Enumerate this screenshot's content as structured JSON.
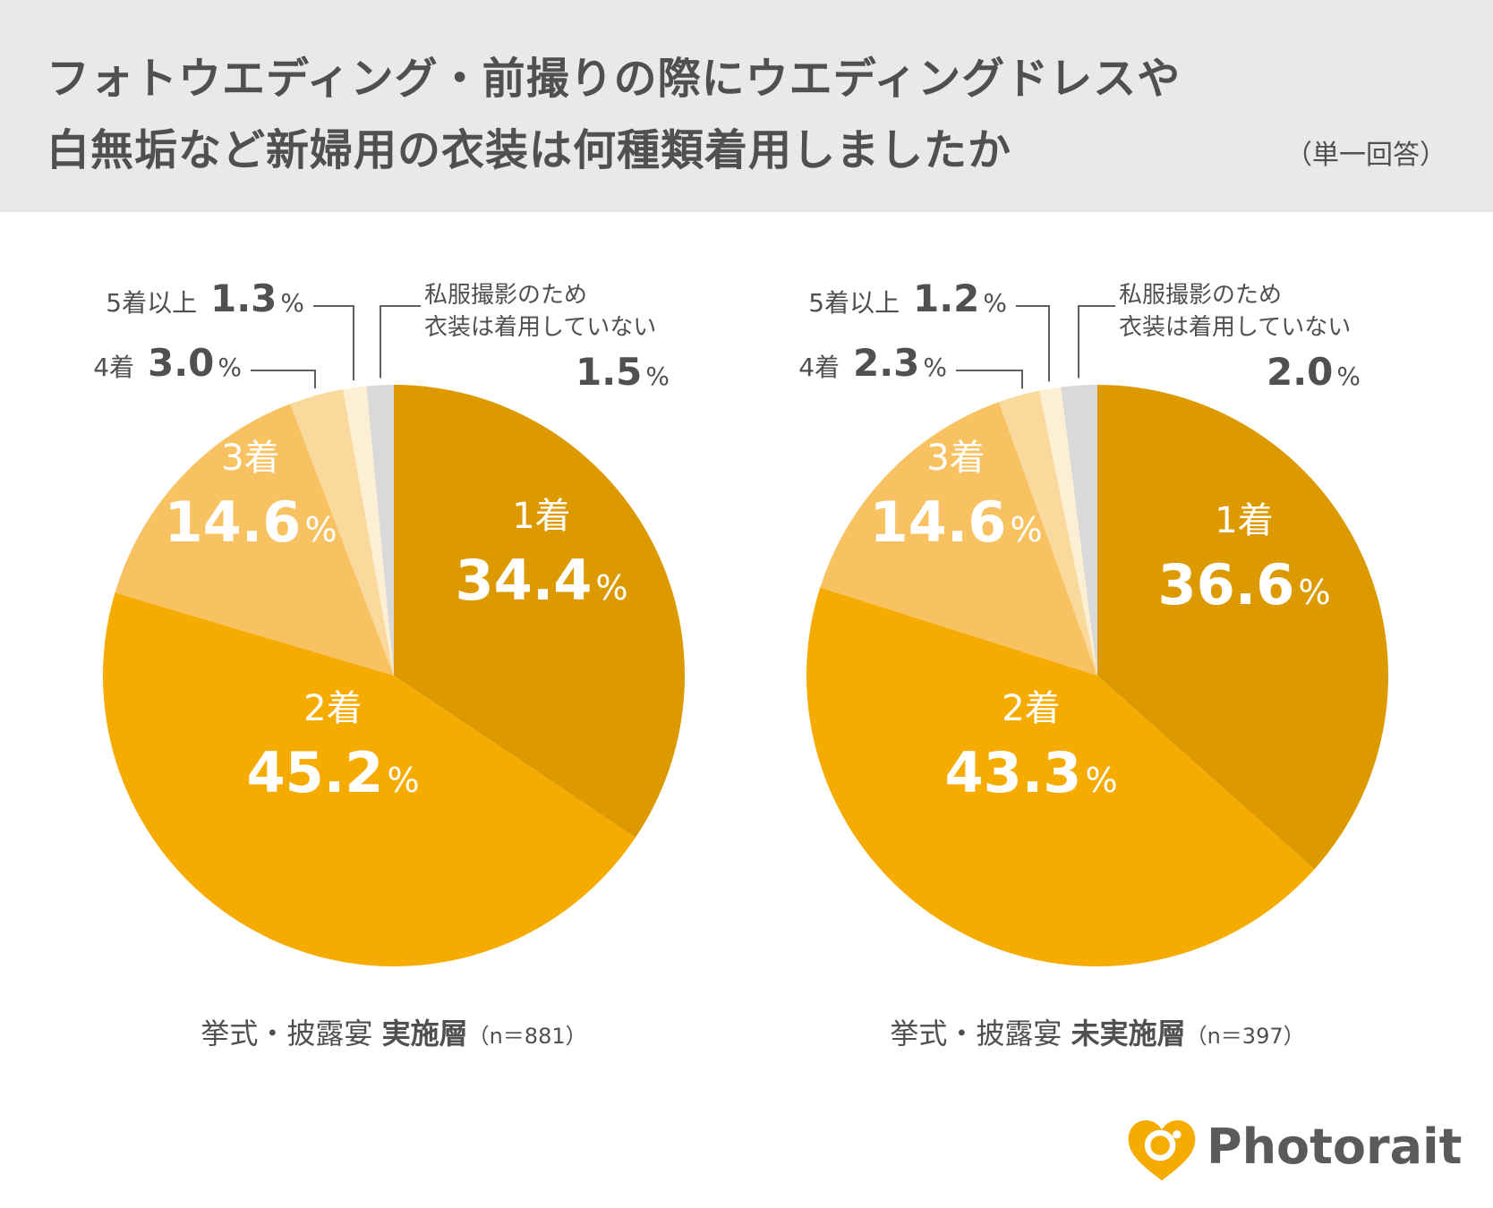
{
  "header": {
    "title_line1": "フォトウエディング・前撮りの際にウエディングドレスや",
    "title_line2": "白無垢など新婦用の衣装は何種類着用しましたか",
    "note": "（単一回答）"
  },
  "colors": {
    "slice1": "#dd9a00",
    "slice2": "#f5ab00",
    "slice3": "#f8c262",
    "slice4": "#fad99c",
    "slice5": "#fdefd3",
    "slice_none": "#d9d9d9",
    "header_bg": "#e9e9e9",
    "text": "#505050",
    "logo": "#f5ab00"
  },
  "chart_data": [
    {
      "type": "pie",
      "caption_prefix": "挙式・披露宴 ",
      "caption_bold": "実施層",
      "caption_n": "（n＝881）",
      "slices": [
        {
          "label": "1着",
          "value": 34.4,
          "value_text": "34.4"
        },
        {
          "label": "2着",
          "value": 45.2,
          "value_text": "45.2"
        },
        {
          "label": "3着",
          "value": 14.6,
          "value_text": "14.6"
        },
        {
          "label": "4着",
          "value": 3.0,
          "value_text": "3.0"
        },
        {
          "label": "5着以上",
          "value": 1.3,
          "value_text": "1.3"
        },
        {
          "label": "私服撮影のため",
          "label2": "衣装は着用していない",
          "value": 1.5,
          "value_text": "1.5"
        }
      ]
    },
    {
      "type": "pie",
      "caption_prefix": "挙式・披露宴 ",
      "caption_bold": "未実施層",
      "caption_n": "（n＝397）",
      "slices": [
        {
          "label": "1着",
          "value": 36.6,
          "value_text": "36.6"
        },
        {
          "label": "2着",
          "value": 43.3,
          "value_text": "43.3"
        },
        {
          "label": "3着",
          "value": 14.6,
          "value_text": "14.6"
        },
        {
          "label": "4着",
          "value": 2.3,
          "value_text": "2.3"
        },
        {
          "label": "5着以上",
          "value": 1.2,
          "value_text": "1.2"
        },
        {
          "label": "私服撮影のため",
          "label2": "衣装は着用していない",
          "value": 2.0,
          "value_text": "2.0"
        }
      ]
    }
  ],
  "percent_sign": "%",
  "logo": {
    "text": "Photorait",
    "icon": "heart-camera-icon"
  }
}
